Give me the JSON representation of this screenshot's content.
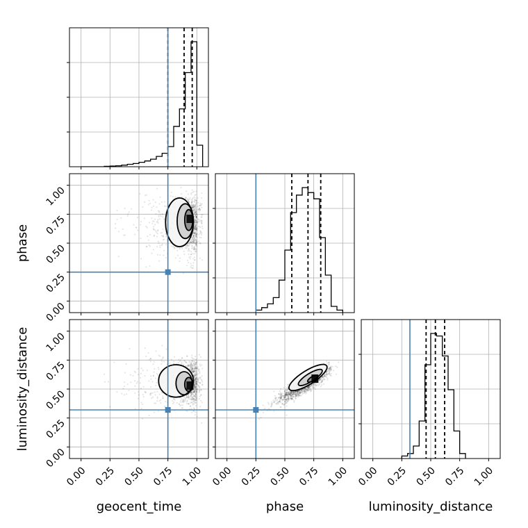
{
  "chart_data": {
    "type": "corner",
    "parameters": [
      "geocent_time",
      "phase",
      "luminosity_distance"
    ],
    "xlabels": [
      "geocent_time",
      "phase",
      "luminosity_distance"
    ],
    "ylabels": [
      "",
      "phase",
      "luminosity_distance"
    ],
    "axis_range": [
      -0.1,
      1.1
    ],
    "tick_values": [
      0.0,
      0.25,
      0.5,
      0.75,
      1.0
    ],
    "tick_labels": [
      "0.00",
      "0.25",
      "0.50",
      "0.75",
      "1.00"
    ],
    "grid": true,
    "truth_color": "#4682b4",
    "truths": {
      "geocent_time": 0.75,
      "phase": 0.25,
      "luminosity_distance": 0.32
    },
    "quantiles": {
      "geocent_time": [
        0.75,
        0.89,
        0.96
      ],
      "phase": [
        0.56,
        0.7,
        0.81
      ],
      "luminosity_distance": [
        0.46,
        0.54,
        0.62
      ]
    },
    "histograms": {
      "geocent_time": {
        "bin_edges": [
          0.0,
          0.05,
          0.1,
          0.15,
          0.2,
          0.25,
          0.3,
          0.35,
          0.4,
          0.45,
          0.5,
          0.55,
          0.6,
          0.65,
          0.7,
          0.75,
          0.8,
          0.85,
          0.9,
          0.95,
          1.0,
          1.05
        ],
        "values": [
          0.0,
          0.0,
          0.0,
          0.0,
          0.003,
          0.005,
          0.007,
          0.012,
          0.018,
          0.024,
          0.033,
          0.043,
          0.056,
          0.077,
          0.1,
          0.15,
          0.3,
          0.43,
          0.7,
          0.93,
          0.16
        ]
      },
      "phase": {
        "bin_edges": [
          0.25,
          0.3,
          0.35,
          0.4,
          0.45,
          0.5,
          0.55,
          0.6,
          0.65,
          0.7,
          0.75,
          0.8,
          0.85,
          0.9,
          0.95,
          1.0
        ],
        "values": [
          0.02,
          0.04,
          0.07,
          0.12,
          0.26,
          0.5,
          0.8,
          0.94,
          1.0,
          0.96,
          0.91,
          0.6,
          0.3,
          0.05,
          0.02
        ]
      },
      "luminosity_distance": {
        "bin_edges": [
          0.25,
          0.3,
          0.35,
          0.4,
          0.45,
          0.5,
          0.55,
          0.6,
          0.65,
          0.7,
          0.75,
          0.8
        ],
        "values": [
          0.02,
          0.04,
          0.1,
          0.3,
          0.75,
          1.0,
          0.98,
          0.82,
          0.55,
          0.22,
          0.04
        ]
      }
    },
    "pairs": [
      {
        "x": "geocent_time",
        "y": "phase",
        "mode": [
          0.94,
          0.71
        ],
        "contours": [
          {
            "level": "outer",
            "cx": 0.85,
            "cy": 0.68,
            "rx": 0.12,
            "ry": 0.21,
            "rot": 0
          },
          {
            "level": "middle",
            "cx": 0.9,
            "cy": 0.69,
            "rx": 0.07,
            "ry": 0.15,
            "rot": 0
          },
          {
            "level": "inner",
            "cx": 0.93,
            "cy": 0.7,
            "rx": 0.035,
            "ry": 0.09,
            "rot": 0
          }
        ]
      },
      {
        "x": "geocent_time",
        "y": "luminosity_distance",
        "mode": [
          0.94,
          0.53
        ],
        "contours": [
          {
            "level": "outer",
            "cx": 0.82,
            "cy": 0.57,
            "rx": 0.15,
            "ry": 0.14,
            "rot": 0
          },
          {
            "level": "middle",
            "cx": 0.89,
            "cy": 0.55,
            "rx": 0.07,
            "ry": 0.1,
            "rot": 0
          },
          {
            "level": "inner",
            "cx": 0.93,
            "cy": 0.54,
            "rx": 0.035,
            "ry": 0.06,
            "rot": 0
          }
        ]
      },
      {
        "x": "phase",
        "y": "luminosity_distance",
        "mode": [
          0.76,
          0.59
        ],
        "contours": [
          {
            "level": "outer",
            "cx": 0.7,
            "cy": 0.6,
            "rx": 0.19,
            "ry": 0.06,
            "rot": 32
          },
          {
            "level": "middle",
            "cx": 0.72,
            "cy": 0.6,
            "rx": 0.12,
            "ry": 0.035,
            "rot": 32
          },
          {
            "level": "inner",
            "cx": 0.74,
            "cy": 0.59,
            "rx": 0.05,
            "ry": 0.018,
            "rot": 32
          }
        ]
      }
    ]
  }
}
